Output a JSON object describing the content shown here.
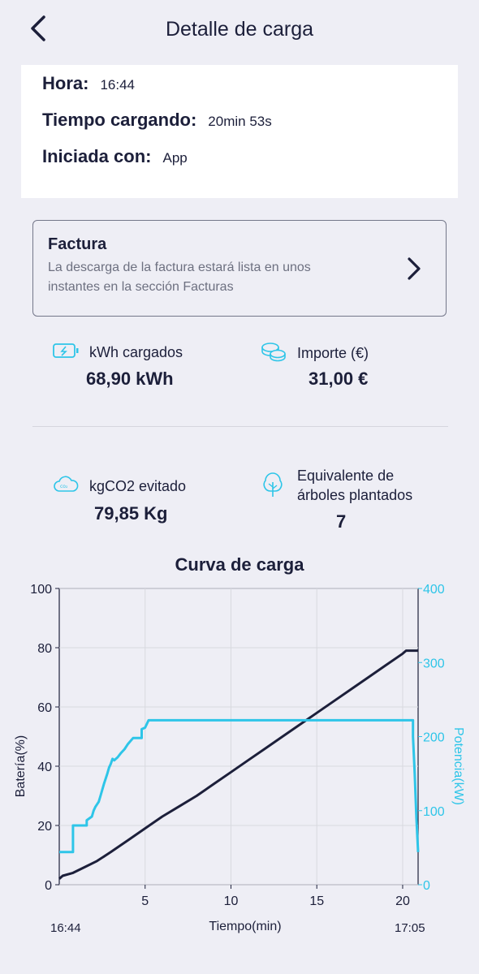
{
  "header": {
    "title": "Detalle de carga",
    "back_icon": "chevron-left-icon"
  },
  "info": {
    "hora_label": "Hora:",
    "hora_value": "16:44",
    "tiempo_label": "Tiempo cargando:",
    "tiempo_value": "20min 53s",
    "iniciada_label": "Iniciada con:",
    "iniciada_value": "App"
  },
  "factura": {
    "title": "Factura",
    "description": "La descarga de la factura estará lista en unos instantes en la sección Facturas"
  },
  "stats": {
    "kwh": {
      "icon": "battery-charging-icon",
      "label": "kWh cargados",
      "value": "68,90 kWh"
    },
    "importe": {
      "icon": "coins-icon",
      "label": "Importe (€)",
      "value": "31,00 €"
    },
    "co2": {
      "icon": "co2-cloud-icon",
      "label": "kgCO2 evitado",
      "value": "79,85 Kg"
    },
    "arboles": {
      "icon": "tree-icon",
      "label": "Equivalente de árboles plantados",
      "value": "7"
    }
  },
  "colors": {
    "navy": "#1c1f3a",
    "cyan": "#2ec5e8",
    "background": "#eeeef5"
  },
  "chart_data": {
    "type": "line",
    "title": "Curva de carga",
    "xlabel": "Tiempo(min)",
    "ylabel_left": "Batería(%)",
    "ylabel_right": "Potencia(kW)",
    "xlim": [
      0,
      20.9
    ],
    "ylim_left": [
      0,
      100
    ],
    "ylim_right": [
      0,
      400
    ],
    "x_ticks": [
      "5",
      "10",
      "15",
      "20"
    ],
    "y_left_ticks": [
      "0",
      "20",
      "40",
      "60",
      "80",
      "100"
    ],
    "y_right_ticks": [
      "0",
      "100",
      "200",
      "300",
      "400"
    ],
    "grid": true,
    "time_start": "16:44",
    "time_end": "17:05",
    "series": [
      {
        "axis": "left",
        "color": "#1c1f3a",
        "points": [
          [
            0,
            2
          ],
          [
            0.2,
            3
          ],
          [
            0.8,
            4
          ],
          [
            1.5,
            6
          ],
          [
            2.2,
            8
          ],
          [
            3,
            11
          ],
          [
            4,
            15
          ],
          [
            5,
            19
          ],
          [
            6,
            23
          ],
          [
            7,
            26.5
          ],
          [
            8,
            30
          ],
          [
            9,
            34
          ],
          [
            10,
            38
          ],
          [
            11,
            42
          ],
          [
            12,
            46
          ],
          [
            13,
            50
          ],
          [
            14,
            54
          ],
          [
            15,
            58
          ],
          [
            16,
            62
          ],
          [
            17,
            66
          ],
          [
            18,
            70
          ],
          [
            19,
            74
          ],
          [
            20,
            78
          ],
          [
            20.2,
            79
          ],
          [
            20.9,
            79
          ]
        ]
      },
      {
        "axis": "right",
        "color": "#2ec5e8",
        "points": [
          [
            0,
            44
          ],
          [
            0.8,
            44
          ],
          [
            0.8,
            80
          ],
          [
            1.6,
            80
          ],
          [
            1.6,
            87
          ],
          [
            1.9,
            92
          ],
          [
            2.0,
            100
          ],
          [
            2.1,
            105
          ],
          [
            2.3,
            112
          ],
          [
            2.4,
            120
          ],
          [
            2.5,
            128
          ],
          [
            2.6,
            136
          ],
          [
            2.8,
            150
          ],
          [
            2.9,
            158
          ],
          [
            3.0,
            163
          ],
          [
            3.1,
            170
          ],
          [
            3.2,
            168
          ],
          [
            3.4,
            172
          ],
          [
            3.6,
            178
          ],
          [
            3.8,
            183
          ],
          [
            4.0,
            190
          ],
          [
            4.3,
            198
          ],
          [
            4.8,
            198
          ],
          [
            4.8,
            210
          ],
          [
            5.0,
            212
          ],
          [
            5.2,
            222
          ],
          [
            10,
            222
          ],
          [
            20,
            222
          ],
          [
            20.6,
            222
          ],
          [
            20.6,
            200
          ],
          [
            20.7,
            150
          ],
          [
            20.8,
            90
          ],
          [
            20.9,
            44
          ]
        ]
      }
    ]
  }
}
